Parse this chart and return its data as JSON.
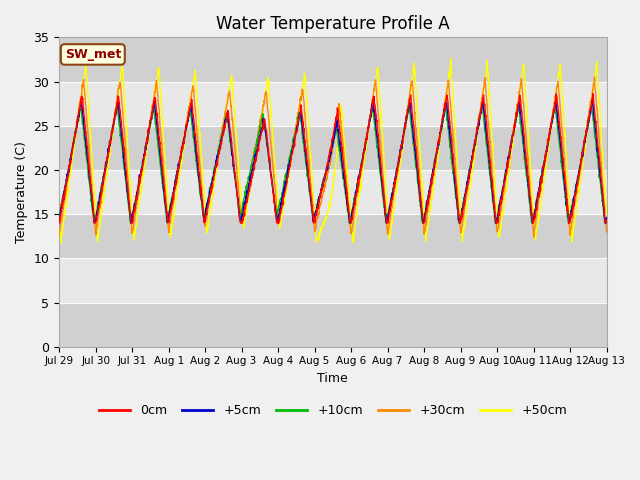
{
  "title": "Water Temperature Profile A",
  "xlabel": "Time",
  "ylabel": "Temperature (C)",
  "ylim": [
    0,
    35
  ],
  "annotation_text": "SW_met",
  "background_color": "#f0f0f0",
  "plot_bg_color": "#d8d8d8",
  "band_light_color": "#e8e8e8",
  "band_dark_color": "#d0d0d0",
  "series_colors": {
    "0cm": "#ff0000",
    "+5cm": "#0000cc",
    "+10cm": "#00bb00",
    "+30cm": "#ff8800",
    "+50cm": "#ffff00"
  },
  "series_linewidth": 1.0,
  "tick_labels": [
    "Jul 29",
    "Jul 30",
    "Jul 31",
    "Aug 1",
    "Aug 2",
    "Aug 3",
    "Aug 4",
    "Aug 5",
    "Aug 6",
    "Aug 7",
    "Aug 8",
    "Aug 9",
    "Aug 10",
    "Aug 11",
    "Aug 12",
    "Aug 13"
  ],
  "tick_positions": [
    0,
    1,
    2,
    3,
    4,
    5,
    6,
    7,
    8,
    9,
    10,
    11,
    12,
    13,
    14,
    15
  ]
}
